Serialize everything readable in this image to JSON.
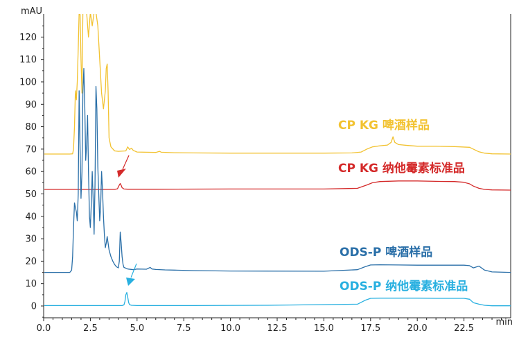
{
  "chart_data": {
    "type": "line",
    "title": "",
    "xlabel": "min",
    "ylabel": "mAU",
    "xlim": [
      0.0,
      25.0
    ],
    "ylim": [
      -5,
      130
    ],
    "x_ticks": [
      "0.0",
      "2.5",
      "5.0",
      "7.5",
      "10.0",
      "12.5",
      "15.0",
      "17.5",
      "20.0",
      "22.5"
    ],
    "y_ticks": [
      "0",
      "10",
      "20",
      "30",
      "40",
      "50",
      "60",
      "70",
      "80",
      "90",
      "100",
      "110",
      "120"
    ],
    "grid": false,
    "series": [
      {
        "name": "CP KG 啤酒样品",
        "color": "#f2c230",
        "x": [
          0.0,
          1.4,
          1.55,
          1.6,
          1.65,
          1.7,
          1.75,
          1.8,
          1.85,
          1.9,
          1.95,
          2.0,
          2.05,
          2.1,
          2.2,
          2.3,
          2.4,
          2.5,
          2.6,
          2.7,
          2.8,
          2.9,
          3.0,
          3.1,
          3.2,
          3.3,
          3.35,
          3.4,
          3.45,
          3.5,
          3.6,
          3.8,
          4.0,
          4.4,
          4.5,
          4.6,
          4.7,
          4.8,
          5.0,
          6.0,
          6.2,
          6.3,
          7.0,
          8.0,
          10.0,
          12.0,
          15.0,
          16.5,
          17.0,
          17.3,
          17.6,
          18.0,
          18.4,
          18.6,
          18.7,
          18.8,
          19.0,
          19.5,
          20.0,
          21.0,
          22.0,
          22.8,
          23.0,
          23.3,
          23.6,
          24.0,
          25.0
        ],
        "y": [
          67.8,
          67.8,
          67.9,
          70,
          80,
          96,
          92,
          100,
          115,
          131,
          130,
          110,
          95,
          131,
          131,
          131,
          120,
          131,
          125,
          131,
          131,
          125,
          110,
          95,
          88,
          96,
          106,
          108,
          96,
          75,
          71,
          69.2,
          69,
          69.2,
          71,
          69.8,
          70.4,
          69.4,
          68.7,
          68.5,
          69,
          68.6,
          68.4,
          68.3,
          68.2,
          68.2,
          68.2,
          68.3,
          68.7,
          70,
          71,
          71.5,
          71.8,
          73,
          75.5,
          73,
          72,
          71.6,
          71.3,
          71.3,
          71.1,
          70.8,
          70,
          68.8,
          68.2,
          67.9,
          67.8
        ]
      },
      {
        "name": "CP KG 纳他霉素标准品",
        "color": "#d42a2a",
        "x": [
          0.0,
          3.8,
          3.95,
          4.05,
          4.1,
          4.15,
          4.2,
          4.3,
          4.5,
          6.0,
          10.0,
          15.0,
          16.8,
          17.3,
          17.6,
          18.0,
          19.0,
          20.0,
          21.0,
          22.0,
          22.5,
          22.8,
          23.0,
          23.3,
          23.6,
          24.0,
          25.0
        ],
        "y": [
          52.0,
          52.0,
          52.3,
          54.0,
          54.6,
          53.8,
          52.8,
          52.2,
          52.1,
          52.1,
          52.2,
          52.2,
          52.5,
          54,
          55,
          55.5,
          55.8,
          55.8,
          55.6,
          55.5,
          55.2,
          54.5,
          53.5,
          52.5,
          52.0,
          51.8,
          51.7
        ]
      },
      {
        "name": "ODS-P 啤酒样品",
        "color": "#2a6fa8",
        "x": [
          0.0,
          1.4,
          1.5,
          1.55,
          1.6,
          1.65,
          1.7,
          1.75,
          1.8,
          1.85,
          1.9,
          1.95,
          2.0,
          2.05,
          2.1,
          2.15,
          2.2,
          2.25,
          2.3,
          2.35,
          2.4,
          2.45,
          2.5,
          2.55,
          2.6,
          2.65,
          2.7,
          2.75,
          2.8,
          2.85,
          2.9,
          2.95,
          3.0,
          3.05,
          3.1,
          3.15,
          3.2,
          3.25,
          3.3,
          3.35,
          3.4,
          3.5,
          3.6,
          3.7,
          3.8,
          3.9,
          4.0,
          4.05,
          4.1,
          4.15,
          4.2,
          4.25,
          4.3,
          4.5,
          4.8,
          5.0,
          5.5,
          5.7,
          5.8,
          6.0,
          6.5,
          7.0,
          8.0,
          10.0,
          15.0,
          16.8,
          17.2,
          17.5,
          18.0,
          19.0,
          20.0,
          21.0,
          22.0,
          22.5,
          22.8,
          23.0,
          23.3,
          23.6,
          24.0,
          25.0
        ],
        "y": [
          15.0,
          15.0,
          16,
          22,
          35,
          46,
          44,
          42,
          38,
          50,
          96,
          70,
          48,
          60,
          95,
          106,
          90,
          65,
          72,
          85,
          60,
          40,
          35,
          45,
          60,
          48,
          32,
          54,
          98,
          88,
          62,
          50,
          38,
          44,
          60,
          52,
          40,
          32,
          26,
          28,
          31,
          25,
          22,
          20,
          18.5,
          17.5,
          17,
          20,
          33,
          28,
          22,
          18.5,
          17.2,
          16.5,
          16.2,
          16.5,
          16.4,
          17.2,
          16.5,
          16.3,
          16.1,
          16.0,
          15.8,
          15.6,
          15.5,
          16.2,
          17.5,
          18.3,
          18.4,
          18.3,
          18.2,
          18.2,
          18.2,
          18.2,
          18.0,
          17.0,
          17.8,
          16.0,
          15.2,
          15.0
        ]
      },
      {
        "name": "ODS-P  纳他霉素标准品",
        "color": "#29b0e0",
        "x": [
          0.0,
          4.2,
          4.3,
          4.35,
          4.4,
          4.45,
          4.5,
          4.55,
          4.6,
          4.7,
          5.0,
          8.0,
          12.0,
          16.8,
          17.2,
          17.5,
          18.0,
          19.0,
          20.0,
          21.0,
          22.0,
          22.5,
          22.8,
          23.0,
          23.3,
          23.6,
          24.0,
          25.0
        ],
        "y": [
          0.2,
          0.2,
          0.5,
          2.0,
          5.0,
          6.0,
          4.0,
          1.5,
          0.6,
          0.3,
          0.2,
          0.2,
          0.3,
          0.8,
          2.5,
          3.4,
          3.5,
          3.5,
          3.5,
          3.4,
          3.4,
          3.4,
          3.0,
          1.5,
          0.8,
          0.3,
          0.1,
          0.1
        ]
      }
    ],
    "annotations": [
      {
        "text": "CP KG 啤酒样品",
        "color": "#f2c230"
      },
      {
        "text": "CP KG 纳他霉素标准品",
        "color": "#d42a2a"
      },
      {
        "text": "ODS-P 啤酒样品",
        "color": "#2a6fa8"
      },
      {
        "text": "ODS-P  纳他霉素标准品",
        "color": "#29b0e0"
      }
    ],
    "arrows": [
      {
        "color": "#d42a2a",
        "points_to_x": 4.1
      },
      {
        "color": "#29b0e0",
        "points_to_x": 4.5
      }
    ]
  }
}
